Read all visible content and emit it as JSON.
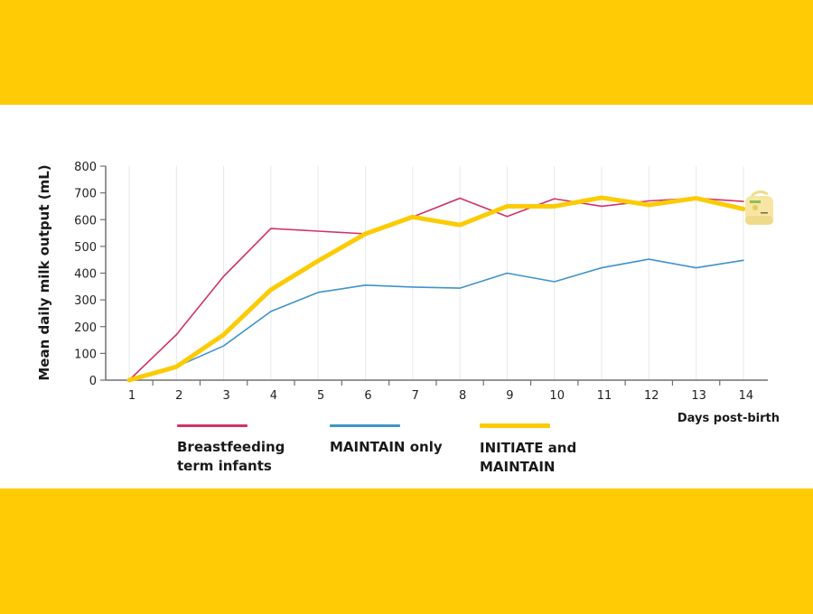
{
  "theme": {
    "band_color": "#fecb05",
    "background": "#ffffff",
    "grid_color": "#e6e8ec",
    "axis_color": "#707070"
  },
  "chart_data": {
    "type": "line",
    "title": "",
    "xlabel": "Days post-birth",
    "ylabel": "Mean daily milk output (mL)",
    "x": [
      1,
      2,
      3,
      4,
      5,
      6,
      7,
      8,
      9,
      10,
      11,
      12,
      13,
      14
    ],
    "x_tick_labels": [
      "1",
      "2",
      "3",
      "4",
      "5",
      "6",
      "7",
      "8",
      "9",
      "10",
      "11",
      "12",
      "13",
      "14"
    ],
    "ylim": [
      0,
      800
    ],
    "y_ticks": [
      0,
      100,
      200,
      300,
      400,
      500,
      600,
      700,
      800
    ],
    "y_tick_labels": [
      "0",
      "100",
      "200",
      "300",
      "400",
      "500",
      "600",
      "700",
      "800"
    ],
    "grid": "vertical",
    "legend_position": "bottom",
    "series": [
      {
        "name": "Breastfeeding\nterm infants",
        "color": "#d0326b",
        "emphasis": "thin",
        "values": [
          0,
          170,
          388,
          567,
          557,
          547,
          610,
          680,
          612,
          678,
          650,
          670,
          680,
          668
        ]
      },
      {
        "name": "MAINTAIN only",
        "color": "#3f93c9",
        "emphasis": "thin",
        "values": [
          0,
          50,
          128,
          257,
          328,
          355,
          348,
          344,
          400,
          368,
          420,
          452,
          420,
          448
        ]
      },
      {
        "name": "INITIATE and\nMAINTAIN",
        "color": "#fccb05",
        "emphasis": "thick",
        "values": [
          0,
          50,
          170,
          338,
          446,
          547,
          610,
          580,
          650,
          650,
          682,
          655,
          680,
          640
        ]
      }
    ],
    "annotations": [
      {
        "type": "icon",
        "name": "breast-pump-icon",
        "at_x": 14
      }
    ]
  }
}
